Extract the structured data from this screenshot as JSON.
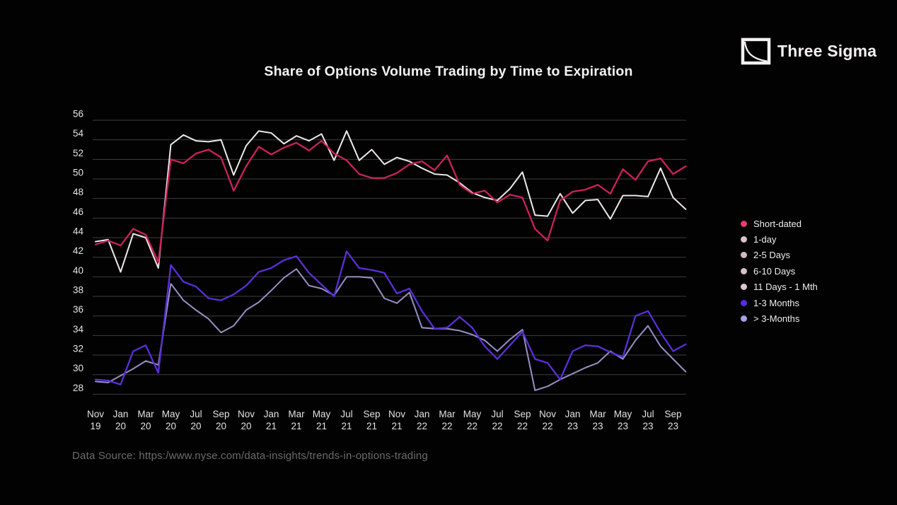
{
  "header": {
    "title": "Share of Options Volume Trading by Time to Expiration",
    "brand": "Three Sigma"
  },
  "legend": {
    "items": [
      {
        "label": "Short-dated",
        "color": "#e0406f"
      },
      {
        "label": "1-day",
        "color": "#dcc3cb"
      },
      {
        "label": "2-5 Days",
        "color": "#cfbac1"
      },
      {
        "label": "6-10 Days",
        "color": "#d9bfc8"
      },
      {
        "label": "11 Days - 1 Mth",
        "color": "#dbc6cb"
      },
      {
        "label": "1-3 Months",
        "color": "#5a2be0"
      },
      {
        "label": "> 3-Months",
        "color": "#a79fe8"
      }
    ]
  },
  "footer": {
    "source": "Data Source: https:/www.nyse.com/data-insights/trends-in-options-trading"
  },
  "chart_data": {
    "type": "line",
    "title": "Share of Options Volume Trading by Time to Expiration",
    "xlabel": "",
    "ylabel": "",
    "ylim": [
      28,
      56
    ],
    "ytick_step": 2,
    "grid": "horizontal",
    "legend_position": "right",
    "x_tick_every": 2,
    "categories": [
      "Nov 19",
      "Dec 19",
      "Jan 20",
      "Feb 20",
      "Mar 20",
      "Apr 20",
      "May 20",
      "Jun 20",
      "Jul 20",
      "Aug 20",
      "Sep 20",
      "Oct 20",
      "Nov 20",
      "Dec 20",
      "Jan 21",
      "Feb 21",
      "Mar 21",
      "Apr 21",
      "May 21",
      "Jun 21",
      "Jul 21",
      "Aug 21",
      "Sep 21",
      "Oct 21",
      "Nov 21",
      "Dec 21",
      "Jan 22",
      "Feb 22",
      "Mar 22",
      "Apr 22",
      "May 22",
      "Jun 22",
      "Jul 22",
      "Aug 22",
      "Sep 22",
      "Oct 22",
      "Nov 22",
      "Dec 22",
      "Jan 23",
      "Feb 23",
      "Mar 23",
      "Apr 23",
      "May 23",
      "Jun 23",
      "Jul 23",
      "Aug 23",
      "Sep 23",
      "Oct 23"
    ],
    "series": [
      {
        "name": "Short-dated",
        "color": "#cc2061",
        "values": [
          43.3,
          43.7,
          43.2,
          44.9,
          44.3,
          41.5,
          52.0,
          51.6,
          52.6,
          53.0,
          52.2,
          48.8,
          51.3,
          53.3,
          52.5,
          53.2,
          53.7,
          52.9,
          53.9,
          52.6,
          51.9,
          50.5,
          50.1,
          50.1,
          50.6,
          51.5,
          51.8,
          50.9,
          52.4,
          49.4,
          48.5,
          48.8,
          47.6,
          48.4,
          48.1,
          44.9,
          43.7,
          47.8,
          48.7,
          48.9,
          49.4,
          48.5,
          51.0,
          49.9,
          51.8,
          52.1,
          50.5,
          51.3
        ]
      },
      {
        "name": "11 Days - 1 Mth",
        "color": "#eae5e8",
        "values": [
          43.6,
          43.8,
          40.5,
          44.4,
          44.0,
          40.9,
          53.5,
          54.5,
          53.9,
          53.8,
          54.0,
          50.4,
          53.4,
          54.9,
          54.7,
          53.6,
          54.4,
          53.9,
          54.6,
          51.9,
          54.9,
          51.9,
          53.0,
          51.5,
          52.2,
          51.8,
          51.1,
          50.5,
          50.4,
          49.6,
          48.6,
          48.1,
          47.8,
          49.0,
          50.7,
          46.3,
          46.2,
          48.5,
          46.5,
          47.8,
          47.9,
          45.9,
          48.3,
          48.3,
          48.2,
          51.1,
          48.1,
          46.9
        ]
      },
      {
        "name": "1-3 Months",
        "color": "#5c2fd9",
        "values": [
          29.5,
          29.4,
          29.0,
          32.4,
          33.0,
          30.2,
          41.2,
          39.5,
          39.0,
          37.8,
          37.6,
          38.2,
          39.1,
          40.5,
          40.9,
          41.7,
          42.1,
          40.4,
          39.2,
          38.0,
          42.6,
          40.9,
          40.7,
          40.4,
          38.3,
          38.8,
          36.5,
          34.7,
          34.8,
          35.9,
          34.8,
          32.9,
          31.6,
          33.0,
          34.4,
          31.6,
          31.2,
          29.5,
          32.4,
          33.0,
          32.9,
          32.3,
          31.8,
          36.0,
          36.5,
          34.3,
          32.4,
          33.1
        ]
      },
      {
        "name": "> 3-Months",
        "color": "#948ec0",
        "values": [
          29.3,
          29.2,
          29.9,
          30.6,
          31.4,
          31.0,
          39.3,
          37.6,
          36.6,
          35.7,
          34.3,
          35.0,
          36.6,
          37.4,
          38.6,
          39.9,
          40.8,
          39.1,
          38.8,
          38.1,
          40.0,
          40.0,
          39.9,
          37.8,
          37.3,
          38.4,
          34.8,
          34.7,
          34.7,
          34.5,
          34.1,
          33.5,
          32.4,
          33.6,
          34.6,
          28.4,
          28.8,
          29.5,
          30.1,
          30.7,
          31.2,
          32.4,
          31.6,
          33.5,
          35.0,
          32.9,
          31.6,
          30.3
        ]
      }
    ]
  }
}
